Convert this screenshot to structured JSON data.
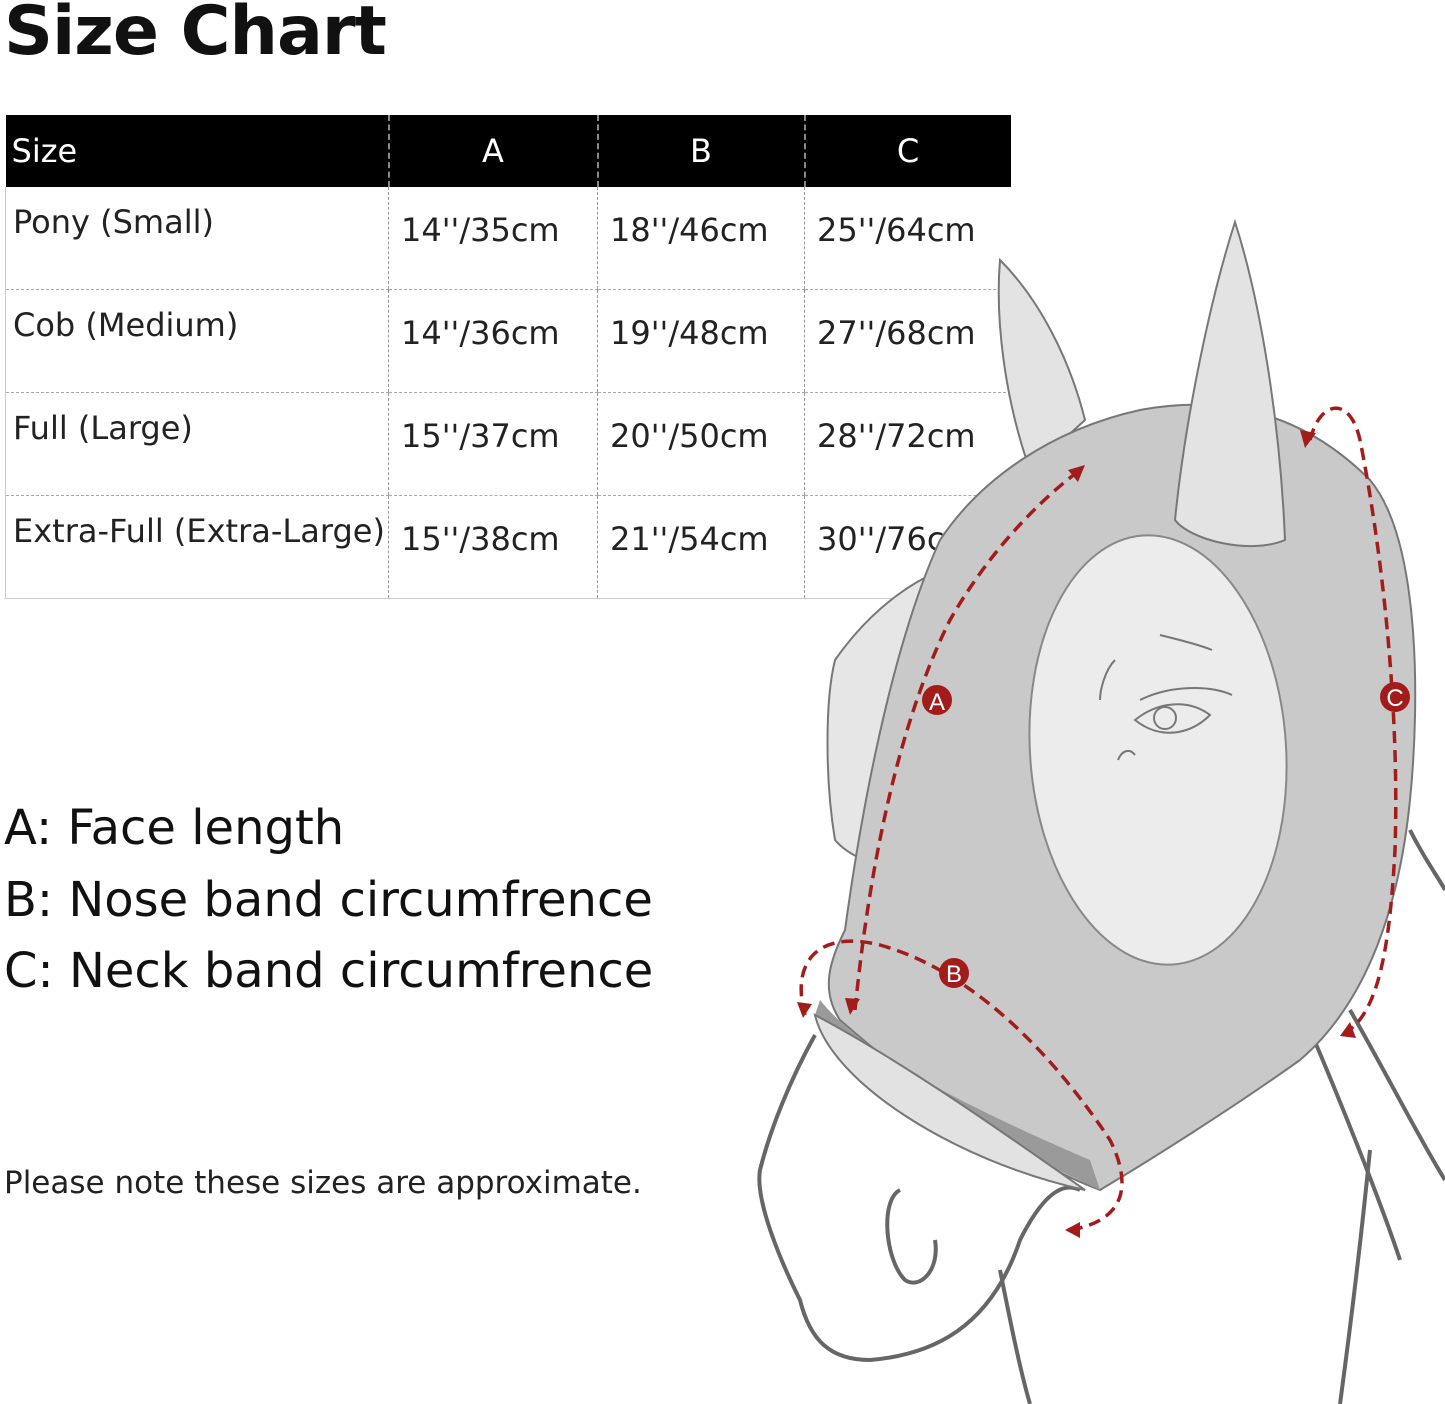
{
  "title": "Size Chart",
  "table": {
    "headers": [
      "Size",
      "A",
      "B",
      "C"
    ],
    "rows": [
      [
        "Pony (Small)",
        "14''/35cm",
        "18''/46cm",
        "25''/64cm"
      ],
      [
        "Cob (Medium)",
        "14''/36cm",
        "19''/48cm",
        "27''/68cm"
      ],
      [
        "Full (Large)",
        "15''/37cm",
        "20''/50cm",
        "28''/72cm"
      ],
      [
        "Extra-Full (Extra-Large)",
        "15''/38cm",
        "21''/54cm",
        "30''/76cm"
      ]
    ]
  },
  "legend": [
    "A: Face length",
    "B: Nose band circumfrence",
    "C: Neck band circumfrence"
  ],
  "note": "Please note these sizes are approximate.",
  "diagram": {
    "labels": {
      "a": "A",
      "b": "B",
      "c": "C"
    },
    "colors": {
      "measure": "#a31c1c",
      "mask": "#c9c9c9",
      "opening": "#ececec",
      "outline": "#666666"
    }
  }
}
